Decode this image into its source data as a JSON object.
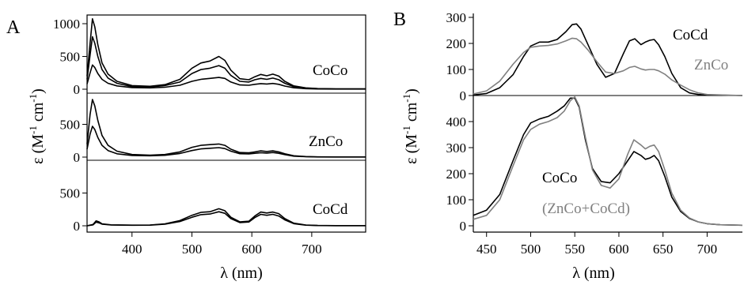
{
  "panel_labels": {
    "a": "A",
    "b": "B"
  },
  "axis_text": {
    "y_a": "ε (M−1 cm−1)",
    "x_a": "λ (nm)",
    "y_b": "ε (M−1 cm−1)",
    "x_b": "λ (nm)",
    "y_unit_prefix": "ε (M",
    "y_unit_sup1": "-1",
    "y_unit_mid": " cm",
    "y_unit_sup2": "-1",
    "y_unit_suffix": ")"
  },
  "chart_data": [
    {
      "id": "A-top",
      "type": "line",
      "label": "CoCo",
      "xlim": [
        325,
        790
      ],
      "ylim": [
        0,
        1000
      ],
      "yticks": [
        0,
        500,
        1000
      ],
      "series": [
        {
          "color": "#000000",
          "x": [
            325,
            330,
            334,
            338,
            343,
            350,
            360,
            375,
            400,
            430,
            455,
            480,
            500,
            515,
            530,
            545,
            555,
            565,
            580,
            595,
            605,
            615,
            625,
            635,
            645,
            655,
            670,
            690,
            710,
            740,
            790
          ],
          "y": [
            200,
            700,
            1075,
            950,
            680,
            400,
            230,
            120,
            55,
            45,
            70,
            150,
            320,
            400,
            430,
            500,
            440,
            290,
            160,
            145,
            190,
            225,
            205,
            230,
            200,
            120,
            50,
            20,
            10,
            5,
            5
          ]
        },
        {
          "color": "#000000",
          "x": [
            325,
            330,
            334,
            338,
            343,
            350,
            360,
            375,
            400,
            430,
            455,
            480,
            500,
            515,
            530,
            545,
            555,
            565,
            580,
            595,
            605,
            615,
            625,
            635,
            645,
            655,
            670,
            690,
            710,
            740,
            790
          ],
          "y": [
            150,
            520,
            800,
            700,
            500,
            300,
            170,
            90,
            40,
            35,
            55,
            110,
            240,
            300,
            320,
            360,
            320,
            210,
            120,
            110,
            145,
            165,
            150,
            170,
            145,
            90,
            40,
            15,
            8,
            4,
            4
          ]
        },
        {
          "color": "#000000",
          "x": [
            325,
            330,
            334,
            338,
            343,
            350,
            360,
            375,
            400,
            430,
            455,
            480,
            500,
            515,
            530,
            545,
            555,
            565,
            580,
            595,
            605,
            615,
            625,
            635,
            645,
            655,
            670,
            690,
            710,
            740,
            790
          ],
          "y": [
            80,
            250,
            370,
            330,
            240,
            150,
            90,
            50,
            25,
            20,
            30,
            60,
            120,
            150,
            165,
            180,
            165,
            110,
            65,
            60,
            75,
            85,
            80,
            88,
            75,
            48,
            22,
            8,
            4,
            2,
            2
          ]
        }
      ]
    },
    {
      "id": "A-mid",
      "type": "line",
      "label": "ZnCo",
      "xlim": [
        325,
        790
      ],
      "ylim": [
        0,
        1000
      ],
      "yticks": [
        0,
        500
      ],
      "series": [
        {
          "color": "#000000",
          "x": [
            325,
            330,
            334,
            338,
            343,
            350,
            360,
            375,
            400,
            430,
            455,
            480,
            500,
            515,
            530,
            545,
            555,
            565,
            580,
            595,
            605,
            615,
            625,
            635,
            645,
            655,
            670,
            690,
            710,
            740,
            790
          ],
          "y": [
            200,
            650,
            880,
            780,
            560,
            330,
            180,
            90,
            40,
            30,
            40,
            80,
            150,
            180,
            190,
            200,
            180,
            120,
            70,
            65,
            80,
            95,
            85,
            95,
            80,
            50,
            20,
            8,
            4,
            2,
            2
          ]
        },
        {
          "color": "#000000",
          "x": [
            325,
            330,
            334,
            338,
            343,
            350,
            360,
            375,
            400,
            430,
            455,
            480,
            500,
            515,
            530,
            545,
            555,
            565,
            580,
            595,
            605,
            615,
            625,
            635,
            645,
            655,
            670,
            690,
            710,
            740,
            790
          ],
          "y": [
            120,
            350,
            470,
            420,
            300,
            180,
            100,
            50,
            25,
            20,
            28,
            55,
            100,
            125,
            135,
            145,
            130,
            90,
            52,
            48,
            58,
            68,
            62,
            70,
            58,
            38,
            15,
            6,
            3,
            2,
            2
          ]
        }
      ]
    },
    {
      "id": "A-bottom",
      "type": "line",
      "label": "CoCd",
      "xlim": [
        325,
        790
      ],
      "ylim": [
        0,
        1000
      ],
      "yticks": [
        0,
        500
      ],
      "series": [
        {
          "color": "#000000",
          "x": [
            325,
            335,
            340,
            345,
            350,
            365,
            400,
            430,
            455,
            480,
            500,
            515,
            530,
            545,
            555,
            565,
            580,
            595,
            605,
            615,
            625,
            635,
            645,
            655,
            670,
            690,
            710,
            740,
            790
          ],
          "y": [
            0,
            20,
            75,
            60,
            30,
            15,
            10,
            12,
            30,
            80,
            160,
            205,
            215,
            260,
            230,
            130,
            60,
            70,
            150,
            210,
            195,
            210,
            185,
            110,
            40,
            12,
            5,
            2,
            2
          ]
        },
        {
          "color": "#000000",
          "x": [
            325,
            335,
            340,
            345,
            350,
            365,
            400,
            430,
            455,
            480,
            500,
            515,
            530,
            545,
            555,
            565,
            580,
            595,
            605,
            615,
            625,
            635,
            645,
            655,
            670,
            690,
            710,
            740,
            790
          ],
          "y": [
            0,
            15,
            55,
            45,
            25,
            12,
            8,
            10,
            25,
            65,
            130,
            170,
            180,
            215,
            190,
            110,
            50,
            58,
            125,
            175,
            160,
            175,
            150,
            90,
            32,
            10,
            4,
            2,
            2
          ]
        }
      ]
    },
    {
      "id": "B-top",
      "type": "line",
      "xlim": [
        435,
        740
      ],
      "ylim": [
        0,
        300
      ],
      "yticks": [
        0,
        100,
        200,
        300
      ],
      "series": [
        {
          "name": "CoCd",
          "color": "#000000",
          "x": [
            435,
            450,
            465,
            480,
            492,
            500,
            510,
            520,
            530,
            540,
            547,
            552,
            557,
            565,
            575,
            585,
            595,
            605,
            612,
            618,
            625,
            630,
            635,
            640,
            645,
            652,
            660,
            670,
            680,
            690,
            700,
            740
          ],
          "y": [
            2,
            8,
            30,
            80,
            150,
            190,
            205,
            205,
            215,
            245,
            272,
            275,
            255,
            195,
            120,
            70,
            85,
            160,
            210,
            218,
            195,
            205,
            212,
            215,
            195,
            150,
            85,
            30,
            10,
            4,
            2,
            0
          ]
        },
        {
          "name": "ZnCo",
          "color": "#808080",
          "x": [
            435,
            450,
            465,
            480,
            492,
            500,
            510,
            520,
            530,
            540,
            547,
            552,
            557,
            565,
            575,
            585,
            595,
            605,
            612,
            618,
            625,
            630,
            635,
            640,
            645,
            652,
            660,
            670,
            680,
            690,
            700,
            740
          ],
          "y": [
            6,
            18,
            55,
            120,
            165,
            185,
            190,
            192,
            198,
            210,
            220,
            218,
            205,
            175,
            130,
            90,
            85,
            95,
            108,
            112,
            102,
            98,
            100,
            100,
            95,
            82,
            60,
            40,
            22,
            10,
            4,
            0
          ]
        }
      ]
    },
    {
      "id": "B-bottom",
      "type": "line",
      "xlim": [
        435,
        740
      ],
      "ylim": [
        0,
        500
      ],
      "yticks": [
        0,
        100,
        200,
        300,
        400
      ],
      "xticks": [
        450,
        500,
        550,
        600,
        650,
        700
      ],
      "series": [
        {
          "name": "CoCo",
          "color": "#000000",
          "x": [
            435,
            450,
            465,
            480,
            492,
            500,
            510,
            520,
            530,
            538,
            545,
            550,
            555,
            562,
            570,
            580,
            590,
            600,
            610,
            617,
            625,
            630,
            635,
            640,
            645,
            652,
            660,
            670,
            680,
            690,
            700,
            715,
            740
          ],
          "y": [
            40,
            60,
            120,
            250,
            350,
            395,
            410,
            420,
            440,
            460,
            490,
            490,
            455,
            330,
            220,
            170,
            165,
            200,
            250,
            285,
            270,
            255,
            260,
            270,
            250,
            190,
            110,
            55,
            28,
            15,
            8,
            4,
            2
          ]
        },
        {
          "name": "(ZnCo+CoCd)",
          "color": "#808080",
          "x": [
            435,
            450,
            465,
            480,
            492,
            500,
            510,
            520,
            530,
            538,
            545,
            550,
            555,
            562,
            570,
            580,
            590,
            600,
            610,
            617,
            625,
            630,
            635,
            640,
            645,
            652,
            660,
            670,
            680,
            690,
            700,
            715,
            740
          ],
          "y": [
            25,
            40,
            100,
            230,
            330,
            370,
            390,
            400,
            415,
            440,
            480,
            495,
            460,
            340,
            215,
            155,
            145,
            180,
            275,
            330,
            310,
            295,
            305,
            310,
            285,
            215,
            125,
            60,
            30,
            15,
            8,
            4,
            2
          ]
        }
      ]
    }
  ]
}
